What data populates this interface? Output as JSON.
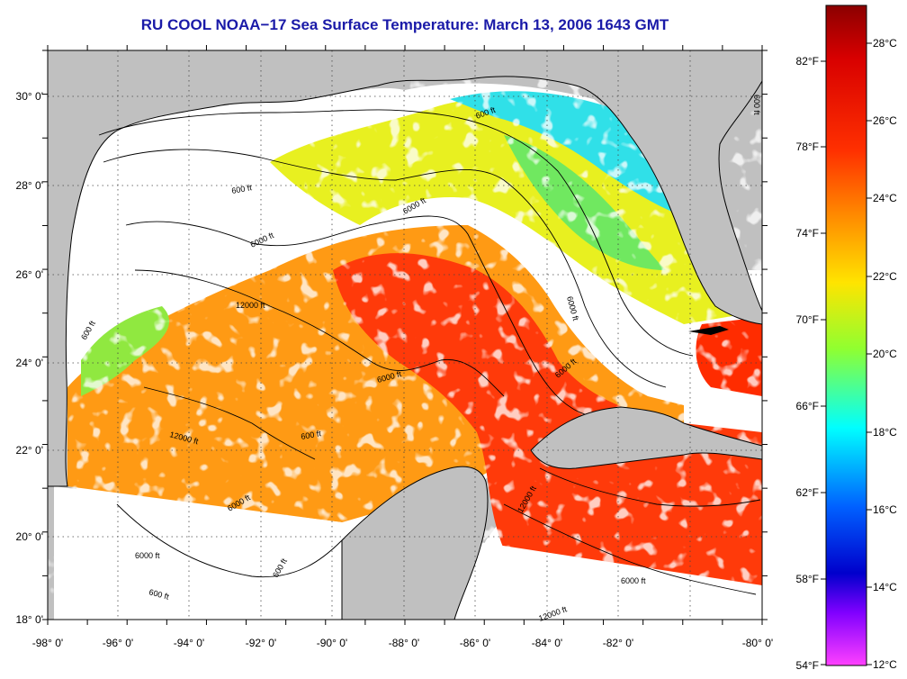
{
  "title": "RU COOL  NOAA−17  Sea Surface Temperature:  March 13, 2006 1643 GMT",
  "map": {
    "lon_ticks": [
      "-98° 0'",
      "-96° 0'",
      "-94° 0'",
      "-92° 0'",
      "-90° 0'",
      "-88° 0'",
      "-86° 0'",
      "-84° 0'",
      "-82° 0'",
      "-80° 0'"
    ],
    "lat_ticks": [
      "30° 0'",
      "28° 0'",
      "26° 0'",
      "24° 0'",
      "22° 0'",
      "20° 0'",
      "18° 0'"
    ],
    "contour_labels": [
      "600 ft",
      "600 ft",
      "6000 ft",
      "6000 ft",
      "12000 ft",
      "12000 ft",
      "6000 ft",
      "600 ft",
      "600 ft",
      "6000 ft",
      "6000 ft",
      "600 ft",
      "12000 ft",
      "6000 ft",
      "6000 ft",
      "12000 ft",
      "6000 ft",
      "600 ft",
      "600 ft"
    ]
  },
  "colorbar": {
    "fahrenheit": [
      "82°F",
      "78°F",
      "74°F",
      "70°F",
      "66°F",
      "62°F",
      "58°F",
      "54°F"
    ],
    "celsius": [
      "28°C",
      "26°C",
      "24°C",
      "22°C",
      "20°C",
      "18°C",
      "16°C",
      "14°C",
      "12°C"
    ],
    "colors": [
      "#8b0000",
      "#ff2000",
      "#ff8c00",
      "#ffe400",
      "#80ff40",
      "#00ffff",
      "#0050ff",
      "#0000cc",
      "#8000ff",
      "#ff40ff"
    ]
  }
}
